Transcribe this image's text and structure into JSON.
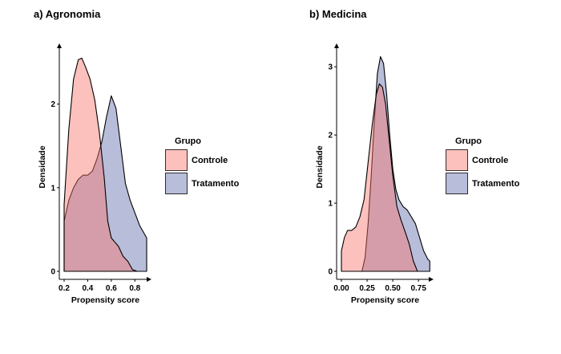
{
  "colors": {
    "controle_fill": "#f8766d",
    "tratamento_fill": "#00127a",
    "overlap_hint": "#b48ca8",
    "outline": "#000000",
    "background": "#ffffff"
  },
  "chart_data": [
    {
      "type": "area",
      "title": "a) Agronomia",
      "xlabel": "Propensity score",
      "ylabel": "Densidade",
      "xlim": [
        0.2,
        0.9
      ],
      "ylim": [
        0,
        2.65
      ],
      "xticks": [
        0.2,
        0.4,
        0.6,
        0.8
      ],
      "xtick_labels": [
        "0.2",
        "0.4",
        "0.6",
        "0.8"
      ],
      "yticks": [
        0,
        1,
        2
      ],
      "ytick_labels": [
        "0",
        "1",
        "2"
      ],
      "grid": false,
      "legend_position": "right",
      "legend": {
        "title": "Grupo",
        "labels": [
          "Controle",
          "Tratamento"
        ]
      },
      "series": [
        {
          "name": "Controle",
          "x": [
            0.2,
            0.24,
            0.28,
            0.32,
            0.35,
            0.38,
            0.42,
            0.46,
            0.5,
            0.54,
            0.57,
            0.6,
            0.63,
            0.66,
            0.7,
            0.74,
            0.78,
            0.82
          ],
          "y": [
            0.8,
            1.7,
            2.3,
            2.53,
            2.55,
            2.45,
            2.3,
            2.05,
            1.65,
            1.12,
            0.6,
            0.4,
            0.35,
            0.3,
            0.18,
            0.12,
            0.02,
            0.0
          ]
        },
        {
          "name": "Tratamento",
          "x": [
            0.2,
            0.24,
            0.28,
            0.32,
            0.36,
            0.4,
            0.44,
            0.48,
            0.52,
            0.56,
            0.6,
            0.64,
            0.68,
            0.72,
            0.76,
            0.8,
            0.84,
            0.88,
            0.9
          ],
          "y": [
            0.6,
            0.85,
            1.0,
            1.1,
            1.15,
            1.15,
            1.2,
            1.35,
            1.55,
            1.85,
            2.1,
            1.95,
            1.5,
            1.05,
            0.85,
            0.7,
            0.55,
            0.45,
            0.4
          ]
        }
      ]
    },
    {
      "type": "area",
      "title": "b) Medicina",
      "xlabel": "Propensity score",
      "ylabel": "Densidade",
      "xlim": [
        0.0,
        0.85
      ],
      "ylim": [
        0,
        3.25
      ],
      "xticks": [
        0.0,
        0.25,
        0.5,
        0.75
      ],
      "xtick_labels": [
        "0.00",
        "0.25",
        "0.50",
        "0.75"
      ],
      "yticks": [
        0,
        1,
        2,
        3
      ],
      "ytick_labels": [
        "0",
        "1",
        "2",
        "3"
      ],
      "grid": false,
      "legend_position": "right",
      "legend": {
        "title": "Grupo",
        "labels": [
          "Controle",
          "Tratamento"
        ]
      },
      "series": [
        {
          "name": "Controle",
          "x": [
            0.0,
            0.03,
            0.06,
            0.1,
            0.14,
            0.18,
            0.22,
            0.26,
            0.3,
            0.34,
            0.37,
            0.4,
            0.43,
            0.46,
            0.5,
            0.54,
            0.58,
            0.62,
            0.66,
            0.7,
            0.74
          ],
          "y": [
            0.3,
            0.5,
            0.6,
            0.6,
            0.65,
            0.8,
            1.05,
            1.6,
            2.15,
            2.6,
            2.75,
            2.7,
            2.45,
            2.0,
            1.4,
            0.95,
            0.75,
            0.58,
            0.4,
            0.15,
            0.0
          ]
        },
        {
          "name": "Tratamento",
          "x": [
            0.2,
            0.23,
            0.26,
            0.29,
            0.32,
            0.35,
            0.38,
            0.41,
            0.44,
            0.47,
            0.5,
            0.53,
            0.56,
            0.6,
            0.64,
            0.68,
            0.72,
            0.76,
            0.8,
            0.84,
            0.86
          ],
          "y": [
            0.0,
            0.2,
            0.7,
            1.4,
            2.2,
            2.9,
            3.15,
            3.05,
            2.6,
            2.0,
            1.5,
            1.2,
            1.05,
            0.95,
            0.9,
            0.8,
            0.7,
            0.5,
            0.3,
            0.18,
            0.15
          ]
        }
      ]
    }
  ]
}
